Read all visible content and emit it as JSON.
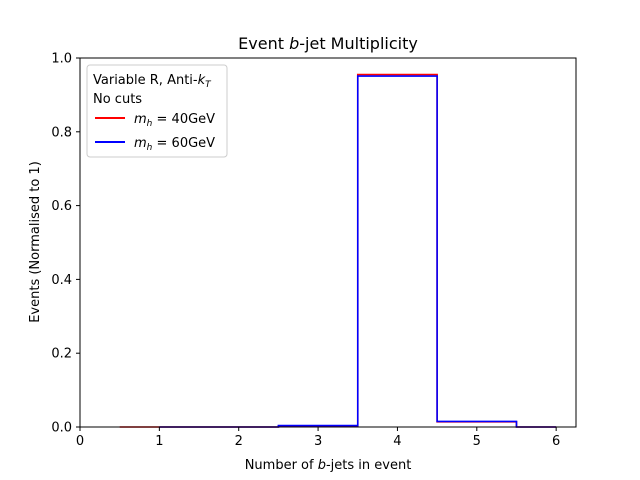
{
  "chart_data": {
    "type": "step",
    "title_parts": [
      "Event ",
      "b",
      "-jet Multiplicity"
    ],
    "xlabel_parts": [
      "Number of ",
      "b",
      "-jets in event"
    ],
    "ylabel": "Events (Normalised to 1)",
    "xlim": [
      0,
      6.25
    ],
    "ylim": [
      0,
      1.0
    ],
    "xticks": [
      0,
      1,
      2,
      3,
      4,
      5,
      6
    ],
    "yticks": [
      "0.0",
      "0.2",
      "0.4",
      "0.6",
      "0.8",
      "1.0"
    ],
    "legend": {
      "position": "upper left",
      "header_line1": [
        "Variable R, Anti-",
        "k",
        "T"
      ],
      "header_line2": "No cuts",
      "entries": [
        {
          "math": "m",
          "sub": "h",
          "rest": " = 40GeV",
          "color": "#ff0000"
        },
        {
          "math": "m",
          "sub": "h",
          "rest": " = 60GeV",
          "color": "#0000ff"
        }
      ]
    },
    "series": [
      {
        "name": "m_h = 40GeV",
        "color": "#ff0000",
        "bins": [
          [
            0.5,
            1.5,
            0.0
          ],
          [
            1.5,
            2.5,
            0.0
          ],
          [
            2.5,
            3.5,
            0.003
          ],
          [
            3.5,
            4.5,
            0.955
          ],
          [
            4.5,
            5.5,
            0.014
          ],
          [
            5.5,
            6.0,
            0.0
          ]
        ]
      },
      {
        "name": "m_h = 60GeV",
        "color": "#0000ff",
        "bins": [
          [
            1.0,
            1.5,
            0.0
          ],
          [
            1.5,
            2.5,
            0.0
          ],
          [
            2.5,
            3.5,
            0.004
          ],
          [
            3.5,
            4.5,
            0.951
          ],
          [
            4.5,
            5.5,
            0.015
          ],
          [
            5.5,
            6.0,
            0.0
          ]
        ]
      }
    ]
  }
}
